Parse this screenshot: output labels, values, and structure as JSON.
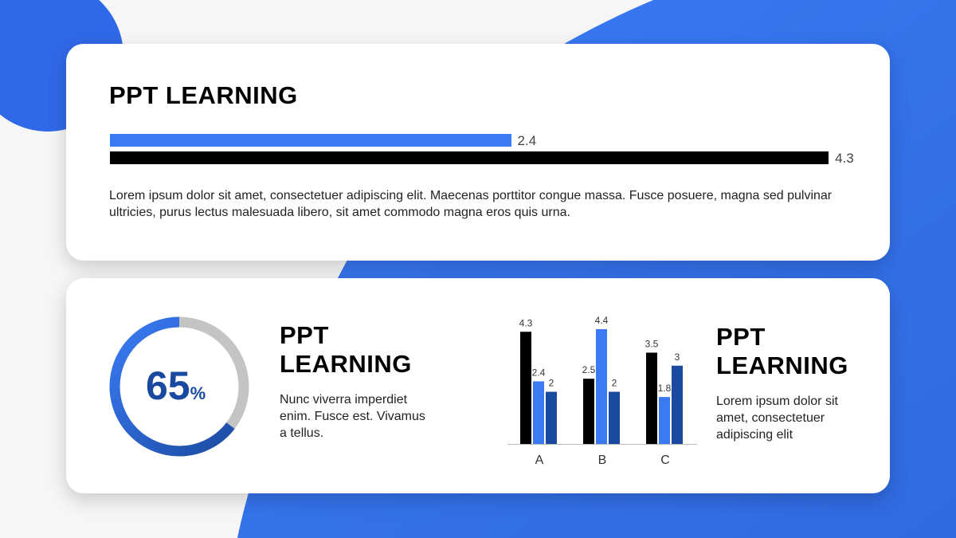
{
  "colors": {
    "accent": "#3a7bf5",
    "dark_blue": "#1a4aa0",
    "black": "#000000",
    "track": "#c4c4c4"
  },
  "top_card": {
    "title": "PPT LEARNING",
    "body": "Lorem ipsum dolor sit amet, consectetuer adipiscing elit. Maecenas porttitor congue massa. Fusce posuere, magna sed pulvinar ultricies, purus lectus malesuada libero, sit amet commodo magna eros quis urna."
  },
  "donut": {
    "value": 65,
    "number": "65",
    "unit": "%"
  },
  "middle": {
    "title": "PPT LEARNING",
    "body": "Nunc viverra imperdiet enim. Fusce est. Vivamus a tellus."
  },
  "right": {
    "title": "PPT LEARNING",
    "body": "Lorem ipsum dolor sit amet, consectetuer adipiscing elit"
  },
  "chart_data": [
    {
      "type": "bar",
      "orientation": "horizontal",
      "values": [
        2.4,
        4.3
      ],
      "labels": [
        "2.4",
        "4.3"
      ],
      "colors": [
        "#3a7bf5",
        "#000000"
      ]
    },
    {
      "type": "pie",
      "variant": "donut",
      "values": [
        65,
        35
      ],
      "colors": [
        "#3a7bf5",
        "#c4c4c4"
      ]
    },
    {
      "type": "bar",
      "categories": [
        "A",
        "B",
        "C"
      ],
      "series": [
        {
          "values": [
            4.3,
            2.5,
            3.5
          ],
          "color": "#000000"
        },
        {
          "values": [
            2.4,
            4.4,
            1.8
          ],
          "color": "#3a7bf5"
        },
        {
          "values": [
            2,
            2,
            3
          ],
          "color": "#1a4aa0"
        }
      ],
      "ylim": [
        0,
        4.4
      ],
      "grid": false
    }
  ]
}
